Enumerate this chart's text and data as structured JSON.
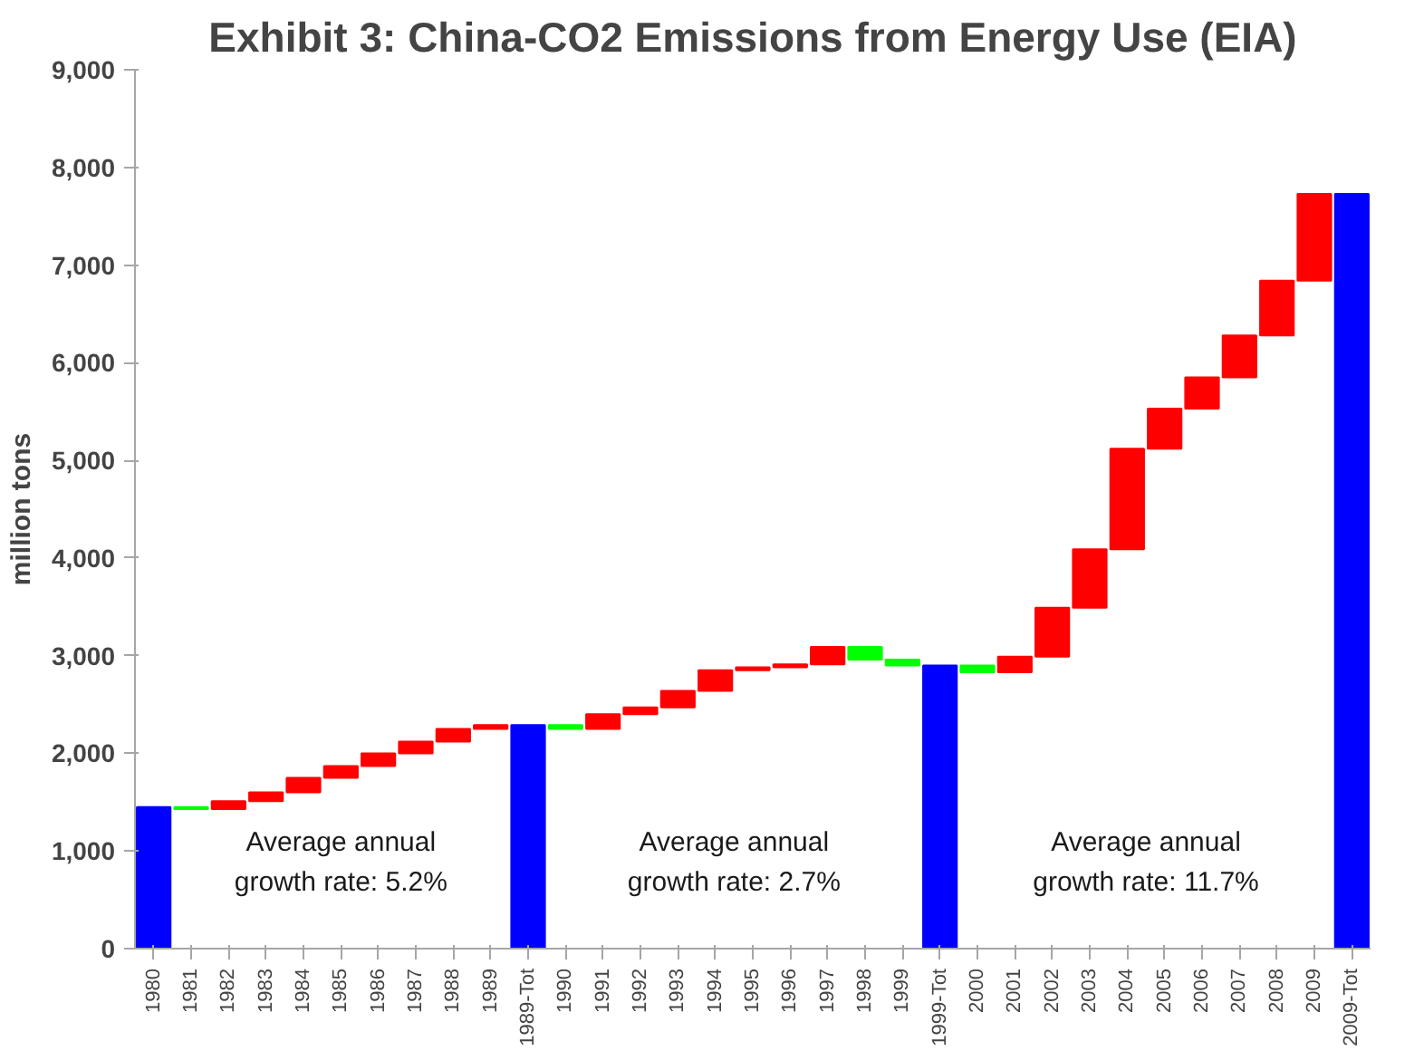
{
  "chart_data": {
    "type": "bar",
    "title": "Exhibit 3: China-CO2 Emissions from Energy Use (EIA)",
    "ylabel": "million tons",
    "categories": [
      "1980",
      "1981",
      "1982",
      "1983",
      "1984",
      "1985",
      "1986",
      "1987",
      "1988",
      "1989",
      "1989-Tot",
      "1990",
      "1991",
      "1992",
      "1993",
      "1994",
      "1995",
      "1996",
      "1997",
      "1998",
      "1999",
      "1999-Tot",
      "2000",
      "2001",
      "2002",
      "2003",
      "2004",
      "2005",
      "2006",
      "2007",
      "2008",
      "2009",
      "2009-Tot"
    ],
    "base": [
      0,
      1450,
      1430,
      1510,
      1600,
      1750,
      1870,
      2000,
      2120,
      2250,
      0,
      2290,
      2250,
      2400,
      2470,
      2640,
      2850,
      2880,
      2910,
      3090,
      2960,
      0,
      2900,
      2830,
      2990,
      3490,
      4090,
      5120,
      5530,
      5850,
      6280,
      6840,
      0
    ],
    "values": [
      1450,
      -20,
      80,
      90,
      150,
      120,
      130,
      120,
      130,
      40,
      2290,
      -40,
      150,
      70,
      170,
      210,
      30,
      30,
      180,
      -130,
      -60,
      2900,
      -70,
      160,
      500,
      600,
      1030,
      410,
      320,
      430,
      560,
      890,
      7730
    ],
    "colors": [
      "#0000ff",
      "#00ff00",
      "#ff0000",
      "#ff0000",
      "#ff0000",
      "#ff0000",
      "#ff0000",
      "#ff0000",
      "#ff0000",
      "#ff0000",
      "#0000ff",
      "#00ff00",
      "#ff0000",
      "#ff0000",
      "#ff0000",
      "#ff0000",
      "#ff0000",
      "#ff0000",
      "#ff0000",
      "#00ff00",
      "#00ff00",
      "#0000ff",
      "#00ff00",
      "#ff0000",
      "#ff0000",
      "#ff0000",
      "#ff0000",
      "#ff0000",
      "#ff0000",
      "#ff0000",
      "#ff0000",
      "#ff0000",
      "#0000ff"
    ],
    "ylim": [
      0,
      9000
    ],
    "yticks": [
      0,
      {
        "value": 1000,
        "label": "1,000"
      },
      {
        "value": 2000,
        "label": "2,000"
      },
      {
        "value": 3000,
        "label": "3,000"
      },
      {
        "value": 4000,
        "label": "4,000"
      },
      {
        "value": 5000,
        "label": "5,000"
      },
      {
        "value": 6000,
        "label": "6,000"
      },
      {
        "value": 7000,
        "label": "7,000"
      },
      {
        "value": 8000,
        "label": "8,000"
      },
      {
        "value": 9000,
        "label": "9,000"
      }
    ],
    "annotations": [
      "Average annual\ngrowth rate: 5.2%",
      "Average annual\ngrowth rate: 2.7%",
      "Average annual\ngrowth rate: 11.7%"
    ]
  }
}
